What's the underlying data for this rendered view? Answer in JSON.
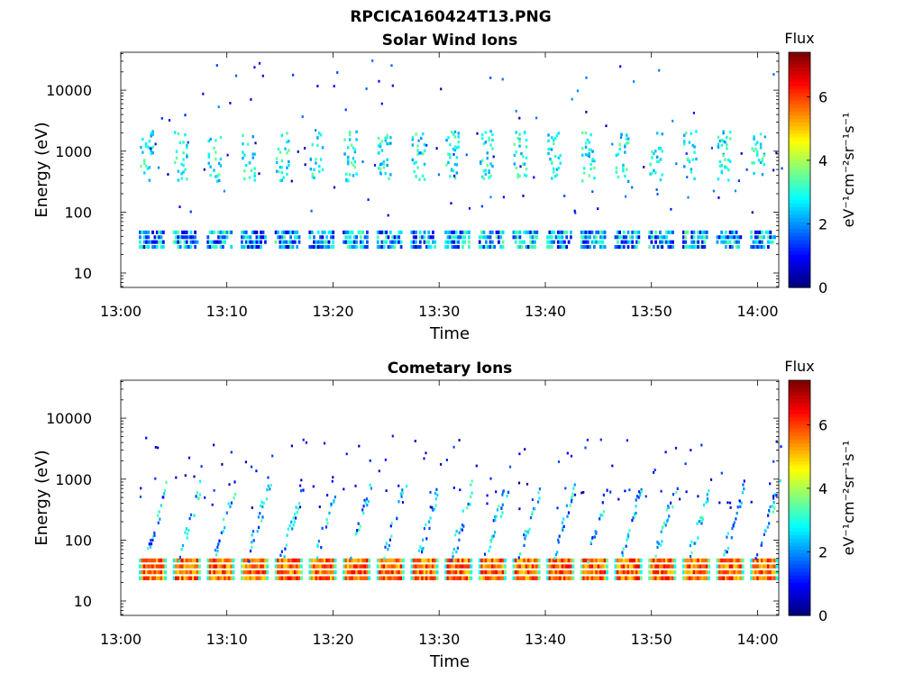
{
  "page_title": "RPCICA160424T13.PNG",
  "chart_data": [
    {
      "type": "heatmap",
      "title": "Solar Wind Ions",
      "xlabel": "Time",
      "ylabel": "Energy (eV)",
      "x_tick_labels": [
        "13:00",
        "13:10",
        "13:20",
        "13:30",
        "13:40",
        "13:50",
        "14:00"
      ],
      "y_tick_labels": [
        "10",
        "100",
        "1000",
        "10000"
      ],
      "y_scale": "log",
      "ylim": [
        5.8,
        42000
      ],
      "xlim_minutes": [
        0,
        62
      ],
      "colorbar": {
        "label_top": "Flux",
        "unit": "eV⁻¹cm⁻²sr⁻¹s⁻¹",
        "ticks": [
          "0",
          "2",
          "4",
          "6"
        ],
        "range": [
          0,
          7.4
        ],
        "colormap": "jet"
      },
      "scan_start_minutes": [
        1.7,
        4.9,
        8.1,
        11.3,
        14.5,
        17.7,
        20.9,
        24.1,
        27.3,
        30.5,
        33.7,
        36.9,
        40.1,
        43.3,
        46.5,
        49.7,
        52.9,
        56.1,
        59.3
      ],
      "features": [
        {
          "name": "solar-wind-beam",
          "energy_range_eV": [
            300,
            2000
          ],
          "flux_range": [
            2.0,
            3.6
          ]
        },
        {
          "name": "low-energy-band",
          "energy_range_eV": [
            25,
            45
          ],
          "flux_range": [
            0.5,
            3.6
          ]
        },
        {
          "name": "sparse-counts",
          "energy_range_eV": [
            80,
            30000
          ],
          "flux_range": [
            0.3,
            2.0
          ]
        }
      ]
    },
    {
      "type": "heatmap",
      "title": "Cometary Ions",
      "xlabel": "Time",
      "ylabel": "Energy (eV)",
      "x_tick_labels": [
        "13:00",
        "13:10",
        "13:20",
        "13:30",
        "13:40",
        "13:50",
        "14:00"
      ],
      "y_tick_labels": [
        "10",
        "100",
        "1000",
        "10000"
      ],
      "y_scale": "log",
      "ylim": [
        5.8,
        42000
      ],
      "xlim_minutes": [
        0,
        62
      ],
      "colorbar": {
        "label_top": "Flux",
        "unit": "eV⁻¹cm⁻²sr⁻¹s⁻¹",
        "ticks": [
          "0",
          "2",
          "4",
          "6"
        ],
        "range": [
          0,
          7.4
        ],
        "colormap": "jet"
      },
      "scan_start_minutes": [
        1.7,
        4.9,
        8.1,
        11.3,
        14.5,
        17.7,
        20.9,
        24.1,
        27.3,
        30.5,
        33.7,
        36.9,
        40.1,
        43.3,
        46.5,
        49.7,
        52.9,
        56.1,
        59.3
      ],
      "features": [
        {
          "name": "cometary-ion-band",
          "energy_range_eV": [
            22,
            45
          ],
          "flux_range": [
            4.8,
            6.6
          ]
        },
        {
          "name": "dispersed-streaks",
          "energy_range_eV": [
            50,
            600
          ],
          "flux_range": [
            1.0,
            3.5
          ]
        },
        {
          "name": "sparse-counts",
          "energy_range_eV": [
            300,
            5000
          ],
          "flux_range": [
            0.3,
            1.5
          ]
        }
      ]
    }
  ]
}
